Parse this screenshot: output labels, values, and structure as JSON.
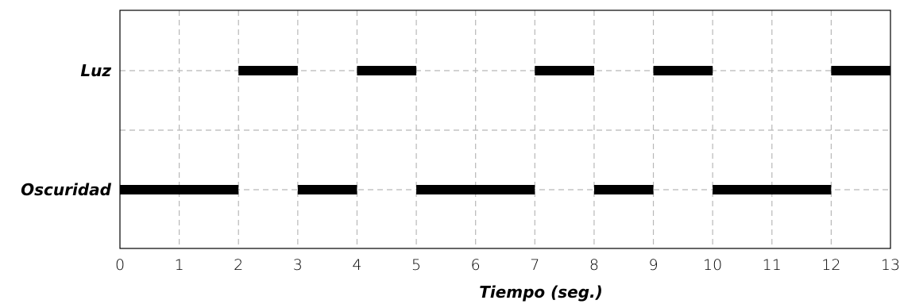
{
  "chart_data": {
    "type": "bar",
    "orientation": "horizontal-timeline",
    "categories": [
      "Luz",
      "Oscuridad"
    ],
    "xlabel": "Tiempo (seg.)",
    "ylabel": "",
    "xlim": [
      0,
      13
    ],
    "x_ticks": [
      0,
      1,
      2,
      3,
      4,
      5,
      6,
      7,
      8,
      9,
      10,
      11,
      12,
      13
    ],
    "grid": true,
    "bar_color": "#000000",
    "series": [
      {
        "category": "Luz",
        "intervals": [
          [
            2,
            3
          ],
          [
            4,
            5
          ],
          [
            7,
            8
          ],
          [
            9,
            10
          ],
          [
            12,
            13
          ]
        ]
      },
      {
        "category": "Oscuridad",
        "intervals": [
          [
            0,
            2
          ],
          [
            3,
            4
          ],
          [
            5,
            7
          ],
          [
            8,
            9
          ],
          [
            10,
            12
          ]
        ]
      }
    ]
  }
}
